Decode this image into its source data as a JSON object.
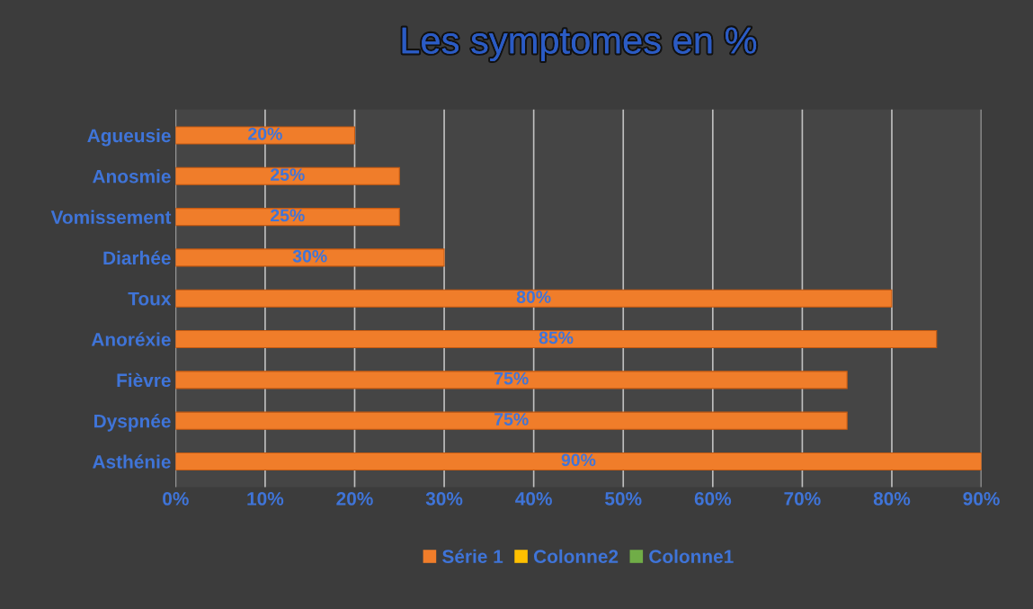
{
  "chart_data": {
    "type": "bar",
    "orientation": "horizontal",
    "title": "Les symptomes en %",
    "categories": [
      "Agueusie",
      "Anosmie",
      "Vomissement",
      "Diarhée",
      "Toux",
      "Anoréxie",
      "Fièvre",
      "Dyspnée",
      "Asthénie"
    ],
    "series": [
      {
        "name": "Série 1",
        "color": "#f07d2a",
        "values": [
          20,
          25,
          25,
          30,
          80,
          85,
          75,
          75,
          90
        ],
        "value_labels": [
          "20%",
          "25%",
          "25%",
          "30%",
          "80%",
          "85%",
          "75%",
          "75%",
          "90%"
        ]
      },
      {
        "name": "Colonne2",
        "color": "#ffc000",
        "values": [
          null,
          null,
          null,
          null,
          null,
          null,
          null,
          null,
          null
        ]
      },
      {
        "name": "Colonne1",
        "color": "#70ad47",
        "values": [
          null,
          null,
          null,
          null,
          null,
          null,
          null,
          null,
          null
        ]
      }
    ],
    "xlim": [
      0,
      90
    ],
    "xticks": [
      {
        "value": 0,
        "label": "0%"
      },
      {
        "value": 10,
        "label": "10%"
      },
      {
        "value": 20,
        "label": "20%"
      },
      {
        "value": 30,
        "label": "30%"
      },
      {
        "value": 40,
        "label": "40%"
      },
      {
        "value": 50,
        "label": "50%"
      },
      {
        "value": 60,
        "label": "60%"
      },
      {
        "value": 70,
        "label": "70%"
      },
      {
        "value": 80,
        "label": "80%"
      },
      {
        "value": 90,
        "label": "90%"
      }
    ],
    "grid": "x",
    "legend": "bottom"
  }
}
